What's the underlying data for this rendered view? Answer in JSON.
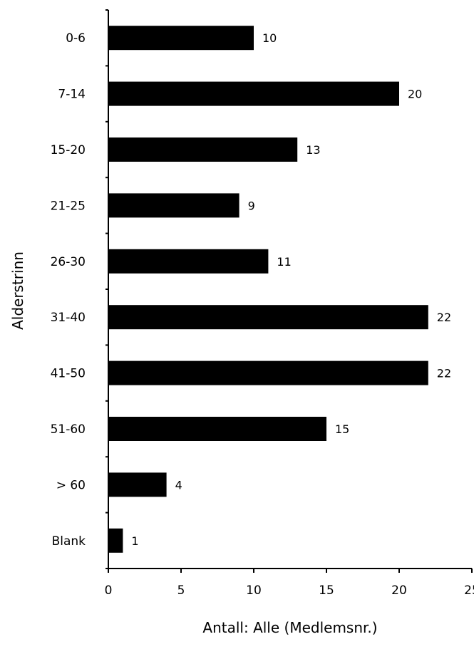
{
  "chart_data": {
    "type": "bar",
    "orientation": "horizontal",
    "categories": [
      "0-6",
      "7-14",
      "15-20",
      "21-25",
      "26-30",
      "31-40",
      "41-50",
      "51-60",
      "> 60",
      "Blank"
    ],
    "values": [
      10,
      20,
      13,
      9,
      11,
      22,
      22,
      15,
      4,
      1
    ],
    "data_labels": [
      "10",
      "20",
      "13",
      "9",
      "11",
      "22",
      "22",
      "15",
      "4",
      "1"
    ],
    "xlabel": "Antall: Alle (Medlemsnr.)",
    "ylabel": "Alderstrinn",
    "xlim": [
      0,
      25
    ],
    "xticks": [
      "0",
      "5",
      "10",
      "15",
      "20",
      "25"
    ],
    "grid": false,
    "legend": "none",
    "bar_color": "#000000"
  }
}
